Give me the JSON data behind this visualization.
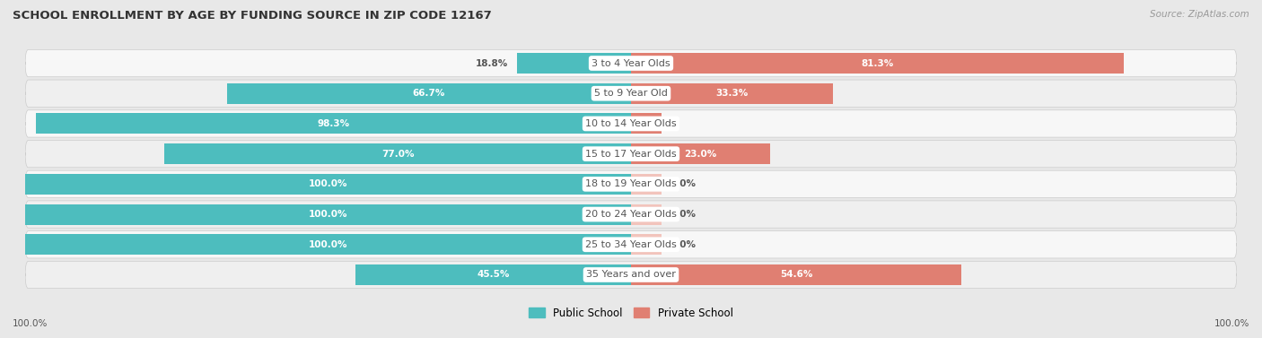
{
  "title": "SCHOOL ENROLLMENT BY AGE BY FUNDING SOURCE IN ZIP CODE 12167",
  "source": "Source: ZipAtlas.com",
  "categories": [
    "3 to 4 Year Olds",
    "5 to 9 Year Old",
    "10 to 14 Year Olds",
    "15 to 17 Year Olds",
    "18 to 19 Year Olds",
    "20 to 24 Year Olds",
    "25 to 34 Year Olds",
    "35 Years and over"
  ],
  "public_values": [
    18.8,
    66.7,
    98.3,
    77.0,
    100.0,
    100.0,
    100.0,
    45.5
  ],
  "private_values": [
    81.3,
    33.3,
    1.7,
    23.0,
    0.0,
    0.0,
    0.0,
    54.6
  ],
  "public_color": "#4dbdbe",
  "private_color": "#e07f72",
  "public_stub_color": "#a8d8d8",
  "private_stub_color": "#f2c4bc",
  "bg_color": "#e8e8e8",
  "row_bg": "#f7f7f7",
  "row_bg_alt": "#efefef",
  "title_color": "#333333",
  "label_dark": "#555555",
  "label_white": "#ffffff",
  "axis_label": "100.0%",
  "max_val": 100.0,
  "stub_size": 5.0
}
